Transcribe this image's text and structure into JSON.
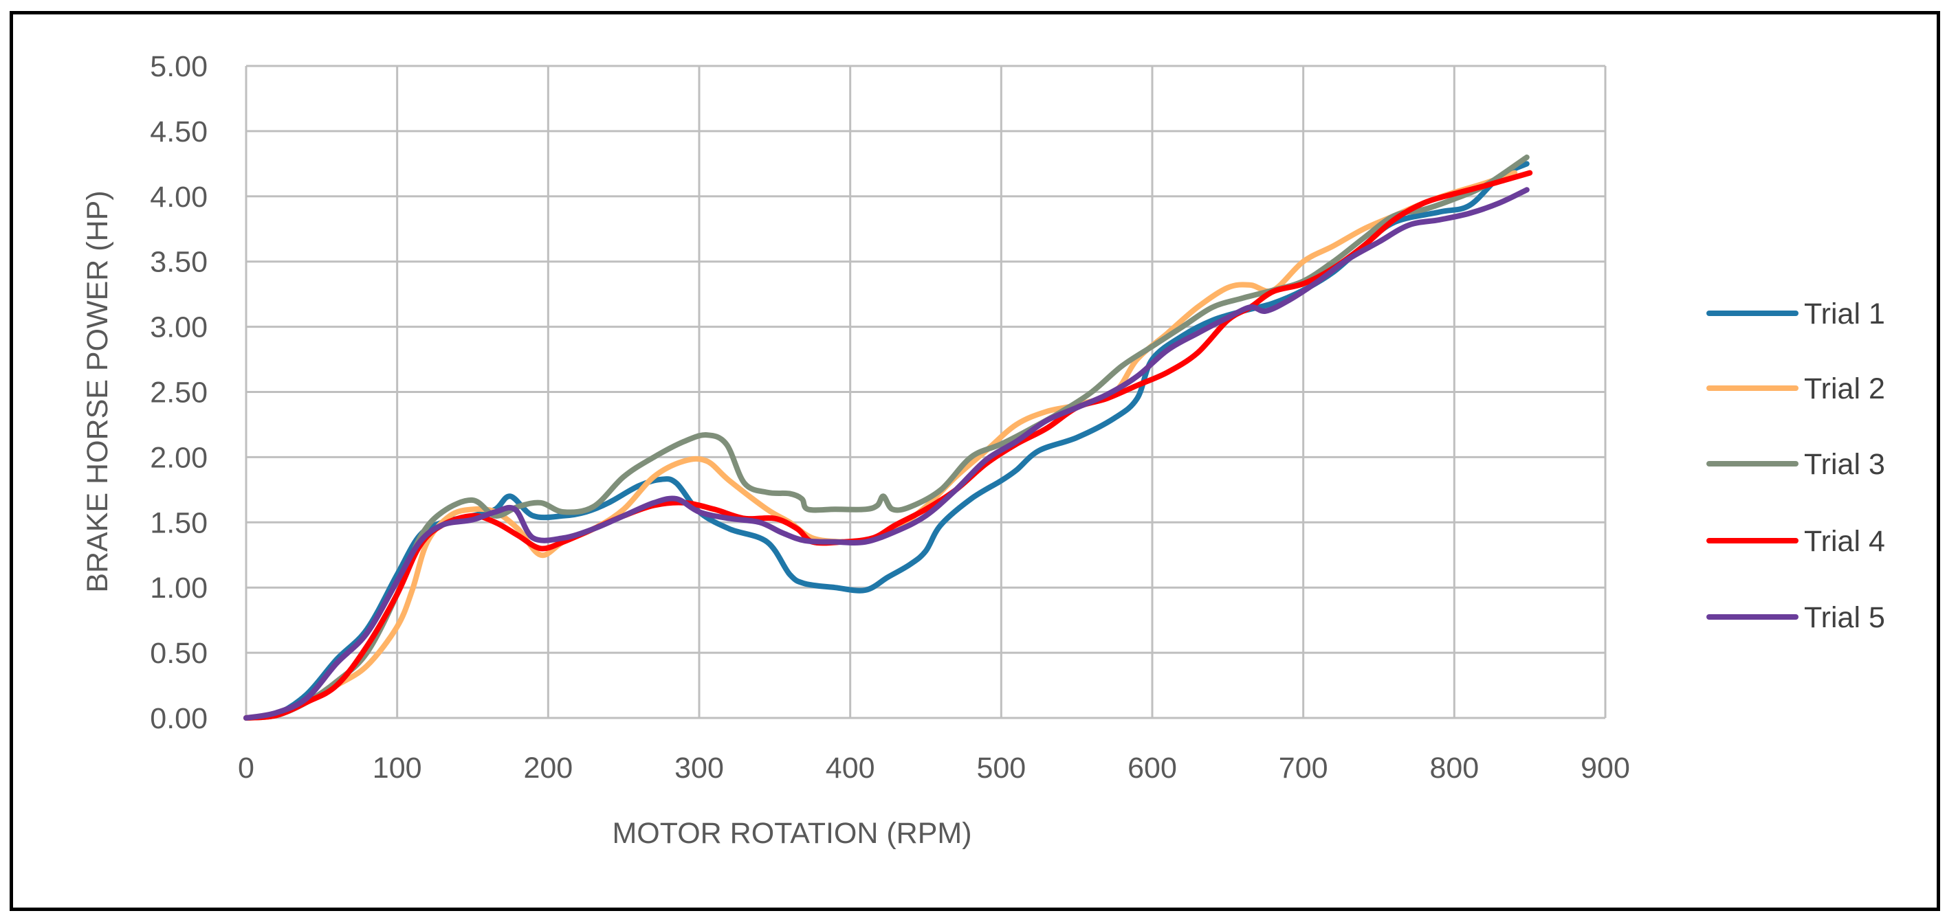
{
  "chart_data": {
    "type": "line",
    "title": "",
    "xlabel": "MOTOR ROTATION (RPM)",
    "ylabel": "BRAKE HORSE POWER (HP)",
    "xlim": [
      0,
      900
    ],
    "ylim": [
      0,
      5
    ],
    "x_ticks": [
      0,
      100,
      200,
      300,
      400,
      500,
      600,
      700,
      800,
      900
    ],
    "y_ticks": [
      "0.00",
      "0.50",
      "1.00",
      "1.50",
      "2.00",
      "2.50",
      "3.00",
      "3.50",
      "4.00",
      "4.50",
      "5.00"
    ],
    "grid": true,
    "legend_position": "right",
    "series": [
      {
        "name": "Trial 1",
        "color": "#1F77A8",
        "points": [
          [
            0,
            0
          ],
          [
            20,
            0.03
          ],
          [
            40,
            0.18
          ],
          [
            60,
            0.45
          ],
          [
            80,
            0.68
          ],
          [
            100,
            1.1
          ],
          [
            115,
            1.4
          ],
          [
            130,
            1.5
          ],
          [
            150,
            1.55
          ],
          [
            165,
            1.6
          ],
          [
            175,
            1.7
          ],
          [
            190,
            1.55
          ],
          [
            210,
            1.55
          ],
          [
            225,
            1.58
          ],
          [
            240,
            1.65
          ],
          [
            260,
            1.78
          ],
          [
            275,
            1.83
          ],
          [
            285,
            1.8
          ],
          [
            300,
            1.58
          ],
          [
            320,
            1.45
          ],
          [
            345,
            1.35
          ],
          [
            360,
            1.1
          ],
          [
            370,
            1.03
          ],
          [
            390,
            1.0
          ],
          [
            410,
            0.98
          ],
          [
            425,
            1.08
          ],
          [
            440,
            1.18
          ],
          [
            450,
            1.28
          ],
          [
            460,
            1.48
          ],
          [
            480,
            1.68
          ],
          [
            500,
            1.82
          ],
          [
            510,
            1.9
          ],
          [
            525,
            2.05
          ],
          [
            550,
            2.15
          ],
          [
            575,
            2.3
          ],
          [
            590,
            2.45
          ],
          [
            600,
            2.75
          ],
          [
            620,
            2.93
          ],
          [
            640,
            3.05
          ],
          [
            660,
            3.12
          ],
          [
            680,
            3.18
          ],
          [
            700,
            3.28
          ],
          [
            720,
            3.42
          ],
          [
            740,
            3.62
          ],
          [
            760,
            3.8
          ],
          [
            790,
            3.88
          ],
          [
            810,
            3.93
          ],
          [
            830,
            4.15
          ],
          [
            848,
            4.25
          ]
        ]
      },
      {
        "name": "Trial 2",
        "color": "#FFB366",
        "points": [
          [
            0,
            0
          ],
          [
            20,
            0.02
          ],
          [
            40,
            0.12
          ],
          [
            60,
            0.25
          ],
          [
            80,
            0.4
          ],
          [
            100,
            0.7
          ],
          [
            110,
            0.98
          ],
          [
            120,
            1.35
          ],
          [
            135,
            1.55
          ],
          [
            150,
            1.6
          ],
          [
            165,
            1.58
          ],
          [
            180,
            1.45
          ],
          [
            195,
            1.25
          ],
          [
            210,
            1.35
          ],
          [
            230,
            1.45
          ],
          [
            250,
            1.6
          ],
          [
            270,
            1.85
          ],
          [
            290,
            1.97
          ],
          [
            305,
            1.97
          ],
          [
            320,
            1.82
          ],
          [
            345,
            1.6
          ],
          [
            360,
            1.5
          ],
          [
            375,
            1.38
          ],
          [
            395,
            1.35
          ],
          [
            410,
            1.36
          ],
          [
            430,
            1.45
          ],
          [
            450,
            1.62
          ],
          [
            470,
            1.85
          ],
          [
            490,
            2.05
          ],
          [
            510,
            2.25
          ],
          [
            530,
            2.35
          ],
          [
            550,
            2.4
          ],
          [
            575,
            2.5
          ],
          [
            590,
            2.75
          ],
          [
            610,
            2.95
          ],
          [
            630,
            3.15
          ],
          [
            650,
            3.3
          ],
          [
            665,
            3.32
          ],
          [
            680,
            3.28
          ],
          [
            700,
            3.5
          ],
          [
            720,
            3.62
          ],
          [
            740,
            3.75
          ],
          [
            760,
            3.85
          ],
          [
            780,
            3.95
          ],
          [
            800,
            4.03
          ],
          [
            820,
            4.1
          ],
          [
            840,
            4.18
          ]
        ]
      },
      {
        "name": "Trial 3",
        "color": "#7F8F7A",
        "points": [
          [
            0,
            0
          ],
          [
            20,
            0.02
          ],
          [
            40,
            0.12
          ],
          [
            60,
            0.28
          ],
          [
            80,
            0.5
          ],
          [
            100,
            0.95
          ],
          [
            115,
            1.38
          ],
          [
            130,
            1.58
          ],
          [
            150,
            1.67
          ],
          [
            165,
            1.55
          ],
          [
            180,
            1.62
          ],
          [
            195,
            1.65
          ],
          [
            210,
            1.58
          ],
          [
            230,
            1.62
          ],
          [
            250,
            1.85
          ],
          [
            270,
            2.0
          ],
          [
            290,
            2.12
          ],
          [
            305,
            2.17
          ],
          [
            318,
            2.1
          ],
          [
            330,
            1.8
          ],
          [
            345,
            1.73
          ],
          [
            360,
            1.72
          ],
          [
            368,
            1.68
          ],
          [
            372,
            1.6
          ],
          [
            390,
            1.6
          ],
          [
            410,
            1.6
          ],
          [
            418,
            1.63
          ],
          [
            422,
            1.7
          ],
          [
            428,
            1.6
          ],
          [
            440,
            1.62
          ],
          [
            460,
            1.75
          ],
          [
            480,
            2.0
          ],
          [
            500,
            2.1
          ],
          [
            520,
            2.22
          ],
          [
            540,
            2.35
          ],
          [
            560,
            2.5
          ],
          [
            580,
            2.7
          ],
          [
            600,
            2.85
          ],
          [
            620,
            3.0
          ],
          [
            640,
            3.15
          ],
          [
            660,
            3.22
          ],
          [
            680,
            3.28
          ],
          [
            700,
            3.35
          ],
          [
            720,
            3.5
          ],
          [
            740,
            3.68
          ],
          [
            760,
            3.85
          ],
          [
            780,
            3.9
          ],
          [
            800,
            3.98
          ],
          [
            820,
            4.08
          ],
          [
            848,
            4.3
          ]
        ]
      },
      {
        "name": "Trial 4",
        "color": "#FF0000",
        "points": [
          [
            0,
            0
          ],
          [
            20,
            0.02
          ],
          [
            40,
            0.12
          ],
          [
            60,
            0.25
          ],
          [
            80,
            0.55
          ],
          [
            100,
            0.95
          ],
          [
            115,
            1.32
          ],
          [
            130,
            1.48
          ],
          [
            150,
            1.55
          ],
          [
            165,
            1.5
          ],
          [
            180,
            1.4
          ],
          [
            195,
            1.3
          ],
          [
            210,
            1.35
          ],
          [
            230,
            1.45
          ],
          [
            250,
            1.55
          ],
          [
            270,
            1.63
          ],
          [
            290,
            1.65
          ],
          [
            310,
            1.6
          ],
          [
            330,
            1.53
          ],
          [
            350,
            1.53
          ],
          [
            365,
            1.45
          ],
          [
            375,
            1.35
          ],
          [
            395,
            1.35
          ],
          [
            415,
            1.38
          ],
          [
            430,
            1.48
          ],
          [
            450,
            1.6
          ],
          [
            470,
            1.75
          ],
          [
            490,
            1.95
          ],
          [
            510,
            2.1
          ],
          [
            530,
            2.22
          ],
          [
            550,
            2.38
          ],
          [
            570,
            2.45
          ],
          [
            590,
            2.55
          ],
          [
            610,
            2.65
          ],
          [
            630,
            2.8
          ],
          [
            650,
            3.05
          ],
          [
            665,
            3.15
          ],
          [
            680,
            3.27
          ],
          [
            700,
            3.33
          ],
          [
            720,
            3.45
          ],
          [
            740,
            3.62
          ],
          [
            760,
            3.82
          ],
          [
            780,
            3.95
          ],
          [
            800,
            4.02
          ],
          [
            820,
            4.08
          ],
          [
            835,
            4.13
          ],
          [
            850,
            4.18
          ]
        ]
      },
      {
        "name": "Trial 5",
        "color": "#6A3D9A",
        "points": [
          [
            0,
            0
          ],
          [
            20,
            0.04
          ],
          [
            40,
            0.15
          ],
          [
            60,
            0.42
          ],
          [
            80,
            0.65
          ],
          [
            100,
            1.05
          ],
          [
            115,
            1.35
          ],
          [
            130,
            1.48
          ],
          [
            150,
            1.52
          ],
          [
            165,
            1.58
          ],
          [
            178,
            1.6
          ],
          [
            190,
            1.38
          ],
          [
            210,
            1.38
          ],
          [
            230,
            1.45
          ],
          [
            250,
            1.55
          ],
          [
            270,
            1.65
          ],
          [
            285,
            1.68
          ],
          [
            300,
            1.58
          ],
          [
            320,
            1.53
          ],
          [
            340,
            1.5
          ],
          [
            355,
            1.42
          ],
          [
            370,
            1.36
          ],
          [
            390,
            1.35
          ],
          [
            410,
            1.35
          ],
          [
            430,
            1.43
          ],
          [
            450,
            1.55
          ],
          [
            470,
            1.75
          ],
          [
            490,
            1.98
          ],
          [
            510,
            2.12
          ],
          [
            530,
            2.28
          ],
          [
            550,
            2.38
          ],
          [
            570,
            2.48
          ],
          [
            590,
            2.62
          ],
          [
            610,
            2.82
          ],
          [
            630,
            2.95
          ],
          [
            650,
            3.07
          ],
          [
            665,
            3.15
          ],
          [
            675,
            3.12
          ],
          [
            690,
            3.2
          ],
          [
            710,
            3.35
          ],
          [
            730,
            3.52
          ],
          [
            750,
            3.65
          ],
          [
            770,
            3.78
          ],
          [
            790,
            3.82
          ],
          [
            810,
            3.87
          ],
          [
            830,
            3.95
          ],
          [
            848,
            4.05
          ]
        ]
      }
    ]
  }
}
